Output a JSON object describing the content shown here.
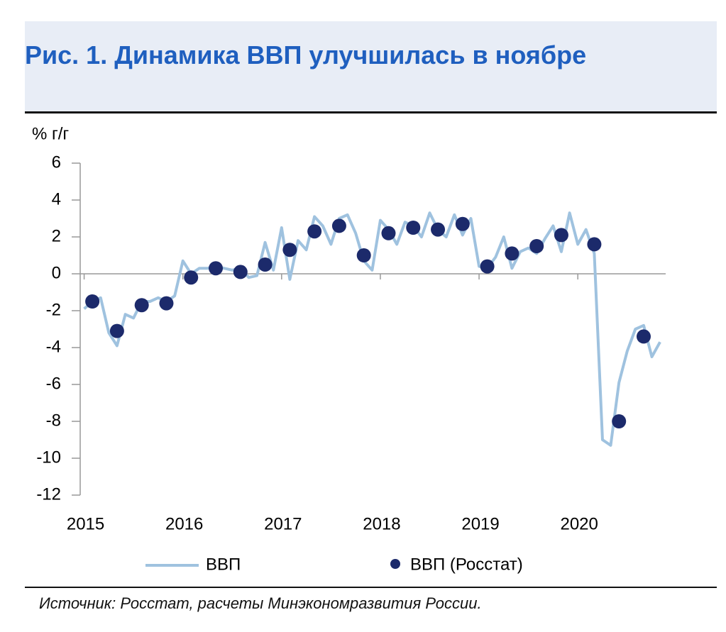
{
  "chart_data": {
    "type": "line",
    "title": "Рис. 1. Динамика ВВП улучшилась в ноябре",
    "y_axis_label": "% г/г",
    "source": "Источник: Росстат, расчеты Минэкономразвития России.",
    "xlim": [
      2014.96,
      2020.89
    ],
    "xticks": [
      2015,
      2016,
      2017,
      2018,
      2019,
      2020
    ],
    "ylim": [
      -12,
      6
    ],
    "yticks": [
      -12,
      -10,
      -8,
      -6,
      -4,
      -2,
      0,
      2,
      4,
      6
    ],
    "legend": "bottom",
    "series": [
      {
        "name": "ВВП",
        "mode": "line",
        "color": "#9fc2df",
        "x": [
          2015,
          2015.083,
          2015.167,
          2015.25,
          2015.333,
          2015.417,
          2015.5,
          2015.583,
          2015.667,
          2015.75,
          2015.833,
          2015.917,
          2016,
          2016.083,
          2016.167,
          2016.25,
          2016.333,
          2016.417,
          2016.5,
          2016.583,
          2016.667,
          2016.75,
          2016.833,
          2016.917,
          2017,
          2017.083,
          2017.167,
          2017.25,
          2017.333,
          2017.417,
          2017.5,
          2017.583,
          2017.667,
          2017.75,
          2017.833,
          2017.917,
          2018,
          2018.083,
          2018.167,
          2018.25,
          2018.333,
          2018.417,
          2018.5,
          2018.583,
          2018.667,
          2018.75,
          2018.833,
          2018.917,
          2019,
          2019.083,
          2019.167,
          2019.25,
          2019.333,
          2019.417,
          2019.5,
          2019.583,
          2019.667,
          2019.75,
          2019.833,
          2019.917,
          2020,
          2020.083,
          2020.167,
          2020.25,
          2020.333,
          2020.417,
          2020.5,
          2020.583,
          2020.667,
          2020.75,
          2020.833
        ],
        "values": [
          -1.9,
          -1.5,
          -1.3,
          -3.2,
          -3.9,
          -2.2,
          -2.4,
          -1.5,
          -1.5,
          -1.3,
          -1.5,
          -1.2,
          0.7,
          0.0,
          0.3,
          0.3,
          0.4,
          0.3,
          0.2,
          0.3,
          -0.2,
          -0.1,
          1.7,
          0.2,
          2.5,
          -0.3,
          1.8,
          1.3,
          3.1,
          2.6,
          1.6,
          3.0,
          3.2,
          2.2,
          0.7,
          0.2,
          2.9,
          2.4,
          1.6,
          2.8,
          2.6,
          2.0,
          3.3,
          2.4,
          2.0,
          3.2,
          2.1,
          3.0,
          0.4,
          0.3,
          0.9,
          2.0,
          0.3,
          1.2,
          1.4,
          1.1,
          1.9,
          2.6,
          1.2,
          3.3,
          1.6,
          2.4,
          1.1,
          -9.0,
          -9.3,
          -5.9,
          -4.2,
          -3.0,
          -2.8,
          -4.5,
          -3.7
        ]
      },
      {
        "name": "ВВП (Росстат)",
        "mode": "markers",
        "color": "#1c2a6b",
        "x": [
          2015.083,
          2015.333,
          2015.583,
          2015.833,
          2016.083,
          2016.333,
          2016.583,
          2016.833,
          2017.083,
          2017.333,
          2017.583,
          2017.833,
          2018.083,
          2018.333,
          2018.583,
          2018.833,
          2019.083,
          2019.333,
          2019.583,
          2019.833,
          2020.167,
          2020.417,
          2020.667
        ],
        "values": [
          -1.5,
          -3.1,
          -1.7,
          -1.6,
          -0.2,
          0.3,
          0.1,
          0.5,
          1.3,
          2.3,
          2.6,
          1.0,
          2.2,
          2.5,
          2.4,
          2.7,
          0.4,
          1.1,
          1.5,
          2.1,
          1.6,
          -8.0,
          -3.4
        ]
      }
    ]
  }
}
